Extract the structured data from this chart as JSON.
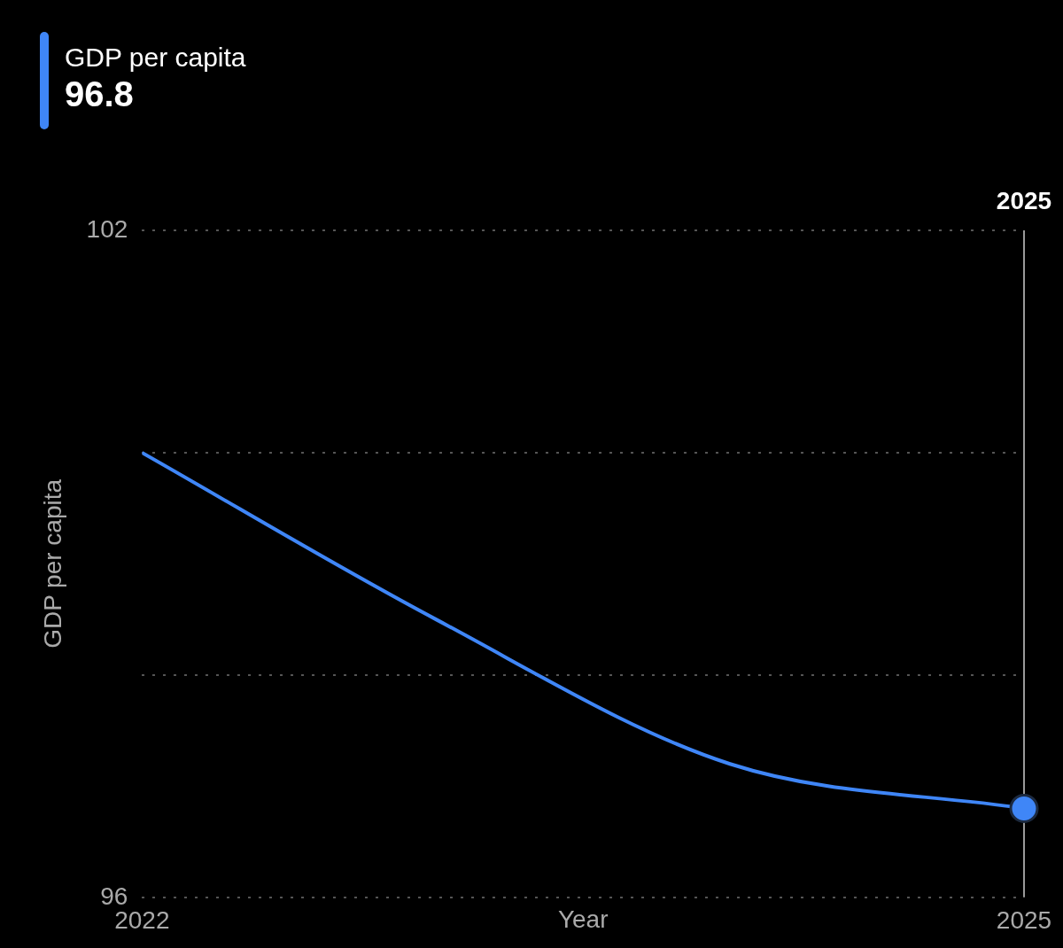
{
  "chart_data": {
    "type": "line",
    "x": [
      2022,
      2023,
      2024,
      2025
    ],
    "series": [
      {
        "name": "GDP per capita",
        "color": "#3f86f7",
        "values": [
          100.0,
          98.5,
          97.2,
          96.8
        ]
      }
    ],
    "xlabel": "Year",
    "ylabel": "GDP per capita",
    "xlim": [
      2022,
      2025
    ],
    "xticks": [
      2022,
      2025
    ],
    "ylim": [
      96,
      102
    ],
    "yticks": [
      96,
      {
        "value": 98,
        "label": null
      },
      {
        "value": 100,
        "label": null
      },
      102
    ],
    "grid": "y",
    "legend": "top left",
    "line_style": "solid",
    "ref_lines": [
      {
        "axis": "x",
        "value": 2025,
        "label": "2025",
        "color": "#9a9a9a"
      }
    ],
    "annotations": [
      "96.8"
    ]
  }
}
